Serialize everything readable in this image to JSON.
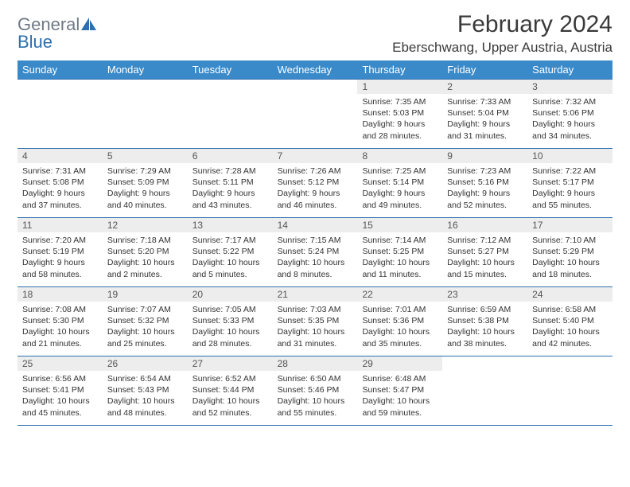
{
  "brand": {
    "part1": "General",
    "part2": "Blue"
  },
  "title": "February 2024",
  "location": "Eberschwang, Upper Austria, Austria",
  "colors": {
    "header_bg": "#3a8ac9",
    "week_border": "#2f6fb0",
    "daynum_bg": "#ededed",
    "text": "#333333",
    "brand_gray": "#6f7a86",
    "brand_blue": "#2f6fb0"
  },
  "weekdays": [
    "Sunday",
    "Monday",
    "Tuesday",
    "Wednesday",
    "Thursday",
    "Friday",
    "Saturday"
  ],
  "weeks": [
    [
      {
        "empty": true
      },
      {
        "empty": true
      },
      {
        "empty": true
      },
      {
        "empty": true
      },
      {
        "day": "1",
        "sunrise": "Sunrise: 7:35 AM",
        "sunset": "Sunset: 5:03 PM",
        "dl1": "Daylight: 9 hours",
        "dl2": "and 28 minutes."
      },
      {
        "day": "2",
        "sunrise": "Sunrise: 7:33 AM",
        "sunset": "Sunset: 5:04 PM",
        "dl1": "Daylight: 9 hours",
        "dl2": "and 31 minutes."
      },
      {
        "day": "3",
        "sunrise": "Sunrise: 7:32 AM",
        "sunset": "Sunset: 5:06 PM",
        "dl1": "Daylight: 9 hours",
        "dl2": "and 34 minutes."
      }
    ],
    [
      {
        "day": "4",
        "sunrise": "Sunrise: 7:31 AM",
        "sunset": "Sunset: 5:08 PM",
        "dl1": "Daylight: 9 hours",
        "dl2": "and 37 minutes."
      },
      {
        "day": "5",
        "sunrise": "Sunrise: 7:29 AM",
        "sunset": "Sunset: 5:09 PM",
        "dl1": "Daylight: 9 hours",
        "dl2": "and 40 minutes."
      },
      {
        "day": "6",
        "sunrise": "Sunrise: 7:28 AM",
        "sunset": "Sunset: 5:11 PM",
        "dl1": "Daylight: 9 hours",
        "dl2": "and 43 minutes."
      },
      {
        "day": "7",
        "sunrise": "Sunrise: 7:26 AM",
        "sunset": "Sunset: 5:12 PM",
        "dl1": "Daylight: 9 hours",
        "dl2": "and 46 minutes."
      },
      {
        "day": "8",
        "sunrise": "Sunrise: 7:25 AM",
        "sunset": "Sunset: 5:14 PM",
        "dl1": "Daylight: 9 hours",
        "dl2": "and 49 minutes."
      },
      {
        "day": "9",
        "sunrise": "Sunrise: 7:23 AM",
        "sunset": "Sunset: 5:16 PM",
        "dl1": "Daylight: 9 hours",
        "dl2": "and 52 minutes."
      },
      {
        "day": "10",
        "sunrise": "Sunrise: 7:22 AM",
        "sunset": "Sunset: 5:17 PM",
        "dl1": "Daylight: 9 hours",
        "dl2": "and 55 minutes."
      }
    ],
    [
      {
        "day": "11",
        "sunrise": "Sunrise: 7:20 AM",
        "sunset": "Sunset: 5:19 PM",
        "dl1": "Daylight: 9 hours",
        "dl2": "and 58 minutes."
      },
      {
        "day": "12",
        "sunrise": "Sunrise: 7:18 AM",
        "sunset": "Sunset: 5:20 PM",
        "dl1": "Daylight: 10 hours",
        "dl2": "and 2 minutes."
      },
      {
        "day": "13",
        "sunrise": "Sunrise: 7:17 AM",
        "sunset": "Sunset: 5:22 PM",
        "dl1": "Daylight: 10 hours",
        "dl2": "and 5 minutes."
      },
      {
        "day": "14",
        "sunrise": "Sunrise: 7:15 AM",
        "sunset": "Sunset: 5:24 PM",
        "dl1": "Daylight: 10 hours",
        "dl2": "and 8 minutes."
      },
      {
        "day": "15",
        "sunrise": "Sunrise: 7:14 AM",
        "sunset": "Sunset: 5:25 PM",
        "dl1": "Daylight: 10 hours",
        "dl2": "and 11 minutes."
      },
      {
        "day": "16",
        "sunrise": "Sunrise: 7:12 AM",
        "sunset": "Sunset: 5:27 PM",
        "dl1": "Daylight: 10 hours",
        "dl2": "and 15 minutes."
      },
      {
        "day": "17",
        "sunrise": "Sunrise: 7:10 AM",
        "sunset": "Sunset: 5:29 PM",
        "dl1": "Daylight: 10 hours",
        "dl2": "and 18 minutes."
      }
    ],
    [
      {
        "day": "18",
        "sunrise": "Sunrise: 7:08 AM",
        "sunset": "Sunset: 5:30 PM",
        "dl1": "Daylight: 10 hours",
        "dl2": "and 21 minutes."
      },
      {
        "day": "19",
        "sunrise": "Sunrise: 7:07 AM",
        "sunset": "Sunset: 5:32 PM",
        "dl1": "Daylight: 10 hours",
        "dl2": "and 25 minutes."
      },
      {
        "day": "20",
        "sunrise": "Sunrise: 7:05 AM",
        "sunset": "Sunset: 5:33 PM",
        "dl1": "Daylight: 10 hours",
        "dl2": "and 28 minutes."
      },
      {
        "day": "21",
        "sunrise": "Sunrise: 7:03 AM",
        "sunset": "Sunset: 5:35 PM",
        "dl1": "Daylight: 10 hours",
        "dl2": "and 31 minutes."
      },
      {
        "day": "22",
        "sunrise": "Sunrise: 7:01 AM",
        "sunset": "Sunset: 5:36 PM",
        "dl1": "Daylight: 10 hours",
        "dl2": "and 35 minutes."
      },
      {
        "day": "23",
        "sunrise": "Sunrise: 6:59 AM",
        "sunset": "Sunset: 5:38 PM",
        "dl1": "Daylight: 10 hours",
        "dl2": "and 38 minutes."
      },
      {
        "day": "24",
        "sunrise": "Sunrise: 6:58 AM",
        "sunset": "Sunset: 5:40 PM",
        "dl1": "Daylight: 10 hours",
        "dl2": "and 42 minutes."
      }
    ],
    [
      {
        "day": "25",
        "sunrise": "Sunrise: 6:56 AM",
        "sunset": "Sunset: 5:41 PM",
        "dl1": "Daylight: 10 hours",
        "dl2": "and 45 minutes."
      },
      {
        "day": "26",
        "sunrise": "Sunrise: 6:54 AM",
        "sunset": "Sunset: 5:43 PM",
        "dl1": "Daylight: 10 hours",
        "dl2": "and 48 minutes."
      },
      {
        "day": "27",
        "sunrise": "Sunrise: 6:52 AM",
        "sunset": "Sunset: 5:44 PM",
        "dl1": "Daylight: 10 hours",
        "dl2": "and 52 minutes."
      },
      {
        "day": "28",
        "sunrise": "Sunrise: 6:50 AM",
        "sunset": "Sunset: 5:46 PM",
        "dl1": "Daylight: 10 hours",
        "dl2": "and 55 minutes."
      },
      {
        "day": "29",
        "sunrise": "Sunrise: 6:48 AM",
        "sunset": "Sunset: 5:47 PM",
        "dl1": "Daylight: 10 hours",
        "dl2": "and 59 minutes."
      },
      {
        "empty": true
      },
      {
        "empty": true
      }
    ]
  ]
}
